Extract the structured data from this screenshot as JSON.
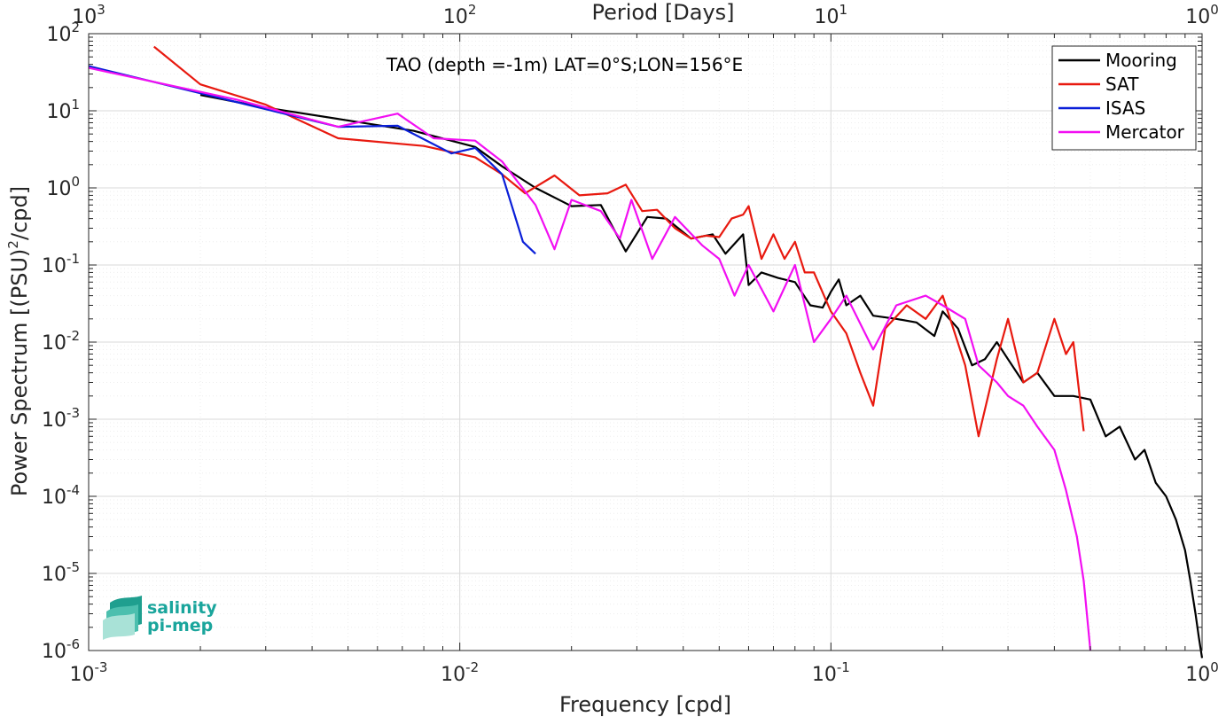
{
  "chart_data": {
    "type": "line",
    "title": "TAO (depth =-1m) LAT=0°S;LON=156°E",
    "xlabel": "Frequency [cpd]",
    "ylabel_base": "Power Spectrum [(PSU)",
    "ylabel_sup": "2",
    "ylabel_tail": "/cpd]",
    "top_xlabel": "Period [Days]",
    "xscale": "log",
    "yscale": "log",
    "xlim": [
      0.001,
      1
    ],
    "ylim": [
      1e-06,
      100
    ],
    "grid": true,
    "legend_position": "top-right",
    "x_ticks": [
      {
        "value": 0.001,
        "base": "10",
        "exp": "-3"
      },
      {
        "value": 0.01,
        "base": "10",
        "exp": "-2"
      },
      {
        "value": 0.1,
        "base": "10",
        "exp": "-1"
      },
      {
        "value": 1,
        "base": "10",
        "exp": "0"
      }
    ],
    "top_ticks": [
      {
        "freq": 0.001,
        "base": "10",
        "exp": "3"
      },
      {
        "freq": 0.01,
        "base": "10",
        "exp": "2"
      },
      {
        "freq": 0.1,
        "base": "10",
        "exp": "1"
      },
      {
        "freq": 1,
        "base": "10",
        "exp": "0"
      }
    ],
    "y_ticks": [
      {
        "value": 100,
        "base": "10",
        "exp": "2"
      },
      {
        "value": 10,
        "base": "10",
        "exp": "1"
      },
      {
        "value": 1,
        "base": "10",
        "exp": "0"
      },
      {
        "value": 0.1,
        "base": "10",
        "exp": "-1"
      },
      {
        "value": 0.01,
        "base": "10",
        "exp": "-2"
      },
      {
        "value": 0.001,
        "base": "10",
        "exp": "-3"
      },
      {
        "value": 0.0001,
        "base": "10",
        "exp": "-4"
      },
      {
        "value": 1e-05,
        "base": "10",
        "exp": "-5"
      },
      {
        "value": 1e-06,
        "base": "10",
        "exp": "-6"
      }
    ],
    "series": [
      {
        "name": "Mooring",
        "color": "#000000",
        "points": [
          [
            0.002,
            16
          ],
          [
            0.003,
            11
          ],
          [
            0.005,
            7.5
          ],
          [
            0.0075,
            5.5
          ],
          [
            0.011,
            3.4
          ],
          [
            0.013,
            1.9
          ],
          [
            0.016,
            1.0
          ],
          [
            0.02,
            0.58
          ],
          [
            0.024,
            0.6
          ],
          [
            0.028,
            0.15
          ],
          [
            0.032,
            0.42
          ],
          [
            0.036,
            0.4
          ],
          [
            0.042,
            0.22
          ],
          [
            0.048,
            0.25
          ],
          [
            0.052,
            0.14
          ],
          [
            0.058,
            0.25
          ],
          [
            0.06,
            0.055
          ],
          [
            0.065,
            0.08
          ],
          [
            0.072,
            0.068
          ],
          [
            0.08,
            0.06
          ],
          [
            0.088,
            0.03
          ],
          [
            0.095,
            0.028
          ],
          [
            0.1,
            0.045
          ],
          [
            0.105,
            0.065
          ],
          [
            0.11,
            0.03
          ],
          [
            0.12,
            0.04
          ],
          [
            0.13,
            0.022
          ],
          [
            0.15,
            0.02
          ],
          [
            0.17,
            0.018
          ],
          [
            0.19,
            0.012
          ],
          [
            0.2,
            0.025
          ],
          [
            0.22,
            0.015
          ],
          [
            0.24,
            0.005
          ],
          [
            0.26,
            0.006
          ],
          [
            0.28,
            0.01
          ],
          [
            0.3,
            0.006
          ],
          [
            0.33,
            0.003
          ],
          [
            0.36,
            0.004
          ],
          [
            0.4,
            0.002
          ],
          [
            0.45,
            0.002
          ],
          [
            0.5,
            0.0018
          ],
          [
            0.55,
            0.0006
          ],
          [
            0.6,
            0.0008
          ],
          [
            0.66,
            0.0003
          ],
          [
            0.7,
            0.0004
          ],
          [
            0.75,
            0.00015
          ],
          [
            0.8,
            0.0001
          ],
          [
            0.85,
            5e-05
          ],
          [
            0.9,
            2e-05
          ],
          [
            0.93,
            8e-06
          ],
          [
            0.96,
            3e-06
          ],
          [
            0.98,
            1.5e-06
          ],
          [
            1,
            8e-07
          ]
        ]
      },
      {
        "name": "SAT",
        "color": "#e8190f",
        "points": [
          [
            0.0015,
            68
          ],
          [
            0.002,
            22
          ],
          [
            0.003,
            12
          ],
          [
            0.0047,
            4.4
          ],
          [
            0.008,
            3.5
          ],
          [
            0.011,
            2.5
          ],
          [
            0.013,
            1.5
          ],
          [
            0.015,
            0.85
          ],
          [
            0.018,
            1.45
          ],
          [
            0.021,
            0.8
          ],
          [
            0.025,
            0.85
          ],
          [
            0.028,
            1.1
          ],
          [
            0.031,
            0.5
          ],
          [
            0.034,
            0.52
          ],
          [
            0.038,
            0.3
          ],
          [
            0.042,
            0.22
          ],
          [
            0.046,
            0.24
          ],
          [
            0.05,
            0.23
          ],
          [
            0.054,
            0.4
          ],
          [
            0.058,
            0.45
          ],
          [
            0.06,
            0.58
          ],
          [
            0.065,
            0.12
          ],
          [
            0.07,
            0.25
          ],
          [
            0.075,
            0.12
          ],
          [
            0.08,
            0.2
          ],
          [
            0.085,
            0.08
          ],
          [
            0.09,
            0.08
          ],
          [
            0.1,
            0.025
          ],
          [
            0.11,
            0.013
          ],
          [
            0.12,
            0.004
          ],
          [
            0.13,
            0.0015
          ],
          [
            0.14,
            0.015
          ],
          [
            0.16,
            0.03
          ],
          [
            0.18,
            0.02
          ],
          [
            0.2,
            0.04
          ],
          [
            0.23,
            0.005
          ],
          [
            0.25,
            0.0006
          ],
          [
            0.28,
            0.006
          ],
          [
            0.3,
            0.02
          ],
          [
            0.33,
            0.003
          ],
          [
            0.36,
            0.004
          ],
          [
            0.4,
            0.02
          ],
          [
            0.43,
            0.007
          ],
          [
            0.45,
            0.01
          ],
          [
            0.48,
            0.0007
          ]
        ]
      },
      {
        "name": "ISAS",
        "color": "#0a1fd8",
        "points": [
          [
            0.001,
            38
          ],
          [
            0.003,
            10.5
          ],
          [
            0.0047,
            6.2
          ],
          [
            0.0068,
            6.4
          ],
          [
            0.0095,
            2.8
          ],
          [
            0.011,
            3.3
          ],
          [
            0.013,
            1.5
          ],
          [
            0.0148,
            0.2
          ],
          [
            0.016,
            0.14
          ]
        ]
      },
      {
        "name": "Mercator",
        "color": "#f20ff2",
        "points": [
          [
            0.001,
            36
          ],
          [
            0.0025,
            14
          ],
          [
            0.0047,
            6.2
          ],
          [
            0.0068,
            9.2
          ],
          [
            0.0085,
            4.4
          ],
          [
            0.011,
            4.1
          ],
          [
            0.013,
            2.2
          ],
          [
            0.016,
            0.6
          ],
          [
            0.018,
            0.16
          ],
          [
            0.02,
            0.7
          ],
          [
            0.024,
            0.5
          ],
          [
            0.027,
            0.22
          ],
          [
            0.029,
            0.7
          ],
          [
            0.033,
            0.12
          ],
          [
            0.038,
            0.42
          ],
          [
            0.045,
            0.18
          ],
          [
            0.05,
            0.12
          ],
          [
            0.055,
            0.04
          ],
          [
            0.06,
            0.1
          ],
          [
            0.07,
            0.025
          ],
          [
            0.08,
            0.1
          ],
          [
            0.09,
            0.01
          ],
          [
            0.1,
            0.02
          ],
          [
            0.11,
            0.04
          ],
          [
            0.13,
            0.008
          ],
          [
            0.15,
            0.03
          ],
          [
            0.18,
            0.04
          ],
          [
            0.2,
            0.03
          ],
          [
            0.23,
            0.02
          ],
          [
            0.25,
            0.005
          ],
          [
            0.28,
            0.003
          ],
          [
            0.3,
            0.002
          ],
          [
            0.33,
            0.0015
          ],
          [
            0.36,
            0.0008
          ],
          [
            0.4,
            0.0004
          ],
          [
            0.43,
            0.00012
          ],
          [
            0.46,
            3e-05
          ],
          [
            0.48,
            8e-06
          ],
          [
            0.5,
            1e-06
          ]
        ]
      }
    ]
  },
  "logo": {
    "line1": "salinity",
    "line2": "pi-mep"
  }
}
